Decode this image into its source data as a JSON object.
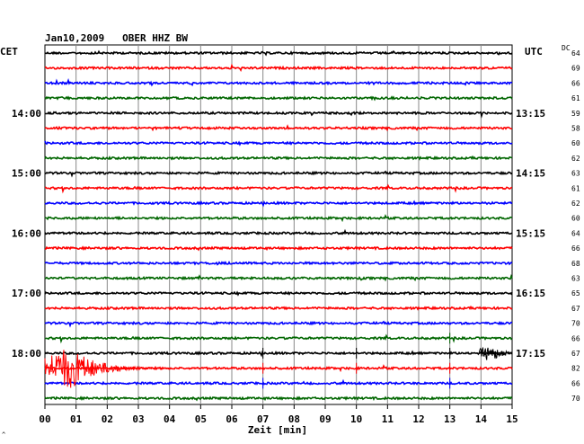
{
  "chart_data": {
    "type": "line",
    "title": "Jan10,2009   OBER HHZ BW",
    "left_label": "CET",
    "right_label": "UTC",
    "dc_label": "DC",
    "xlabel": "Zeit [min]",
    "xlim": [
      0,
      15
    ],
    "x_ticks": [
      "00",
      "01",
      "02",
      "03",
      "04",
      "05",
      "06",
      "07",
      "08",
      "09",
      "10",
      "11",
      "12",
      "13",
      "14",
      "15"
    ],
    "trace_colors": [
      "#000000",
      "#ff0000",
      "#0000ff",
      "#006600"
    ],
    "left_hour_labels": [
      "14:00",
      "15:00",
      "16:00",
      "17:00",
      "18:00"
    ],
    "right_hour_labels": [
      "13:15",
      "14:15",
      "15:15",
      "16:15",
      "17:15"
    ],
    "hour_label_traces": [
      4,
      8,
      12,
      16,
      20
    ],
    "dc_values": [
      "64",
      "69",
      "66",
      "61",
      "59",
      "58",
      "60",
      "62",
      "63",
      "61",
      "62",
      "60",
      "64",
      "66",
      "68",
      "63",
      "65",
      "67",
      "70",
      "66",
      "67",
      "82",
      "66",
      "70"
    ],
    "events": [
      {
        "trace": 21,
        "start_min": 0.0,
        "peak_min": 0.8,
        "end_min": 4.0,
        "amplitude": "large",
        "color": "#ff0000"
      },
      {
        "trace": 20,
        "start_min": 13.9,
        "peak_min": 14.3,
        "end_min": 15.0,
        "amplitude": "medium",
        "color": "#000000"
      }
    ],
    "grid": true
  },
  "footer_mark": "^"
}
